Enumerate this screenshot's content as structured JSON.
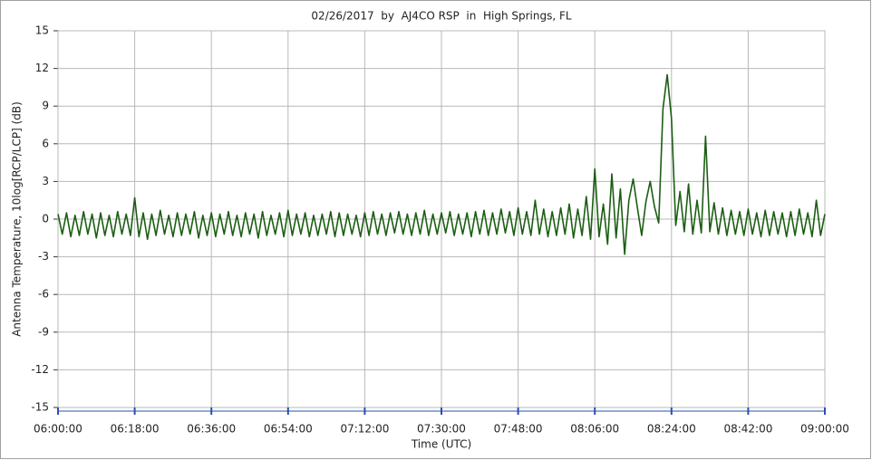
{
  "chart_data": {
    "type": "line",
    "title": "02/26/2017  by  AJ4CO RSP  in  High Springs, FL",
    "xlabel": "Time (UTC)",
    "ylabel": "Antenna Temperature, 10log[RCP/LCP] (dB)",
    "color": "#1b5e12",
    "grid": true,
    "xlim": [
      "06:00:00",
      "09:00:00"
    ],
    "xticks": [
      "06:00:00",
      "06:18:00",
      "06:36:00",
      "06:54:00",
      "07:12:00",
      "07:30:00",
      "07:48:00",
      "08:06:00",
      "08:24:00",
      "08:42:00",
      "09:00:00"
    ],
    "ylim": [
      -15,
      15
    ],
    "yticks": [
      -15,
      -12,
      -9,
      -6,
      -3,
      0,
      3,
      6,
      9,
      12,
      15
    ],
    "x": [
      "06:00:00",
      "06:01:00",
      "06:02:00",
      "06:03:00",
      "06:04:00",
      "06:05:00",
      "06:06:00",
      "06:07:00",
      "06:08:00",
      "06:09:00",
      "06:10:00",
      "06:11:00",
      "06:12:00",
      "06:13:00",
      "06:14:00",
      "06:15:00",
      "06:16:00",
      "06:17:00",
      "06:18:00",
      "06:19:00",
      "06:20:00",
      "06:21:00",
      "06:22:00",
      "06:23:00",
      "06:24:00",
      "06:25:00",
      "06:26:00",
      "06:27:00",
      "06:28:00",
      "06:29:00",
      "06:30:00",
      "06:31:00",
      "06:32:00",
      "06:33:00",
      "06:34:00",
      "06:35:00",
      "06:36:00",
      "06:37:00",
      "06:38:00",
      "06:39:00",
      "06:40:00",
      "06:41:00",
      "06:42:00",
      "06:43:00",
      "06:44:00",
      "06:45:00",
      "06:46:00",
      "06:47:00",
      "06:48:00",
      "06:49:00",
      "06:50:00",
      "06:51:00",
      "06:52:00",
      "06:53:00",
      "06:54:00",
      "06:55:00",
      "06:56:00",
      "06:57:00",
      "06:58:00",
      "06:59:00",
      "07:00:00",
      "07:01:00",
      "07:02:00",
      "07:03:00",
      "07:04:00",
      "07:05:00",
      "07:06:00",
      "07:07:00",
      "07:08:00",
      "07:09:00",
      "07:10:00",
      "07:11:00",
      "07:12:00",
      "07:13:00",
      "07:14:00",
      "07:15:00",
      "07:16:00",
      "07:17:00",
      "07:18:00",
      "07:19:00",
      "07:20:00",
      "07:21:00",
      "07:22:00",
      "07:23:00",
      "07:24:00",
      "07:25:00",
      "07:26:00",
      "07:27:00",
      "07:28:00",
      "07:29:00",
      "07:30:00",
      "07:31:00",
      "07:32:00",
      "07:33:00",
      "07:34:00",
      "07:35:00",
      "07:36:00",
      "07:37:00",
      "07:38:00",
      "07:39:00",
      "07:40:00",
      "07:41:00",
      "07:42:00",
      "07:43:00",
      "07:44:00",
      "07:45:00",
      "07:46:00",
      "07:47:00",
      "07:48:00",
      "07:49:00",
      "07:50:00",
      "07:51:00",
      "07:52:00",
      "07:53:00",
      "07:54:00",
      "07:55:00",
      "07:56:00",
      "07:57:00",
      "07:58:00",
      "07:59:00",
      "08:00:00",
      "08:01:00",
      "08:02:00",
      "08:03:00",
      "08:04:00",
      "08:05:00",
      "08:06:00",
      "08:07:00",
      "08:08:00",
      "08:09:00",
      "08:10:00",
      "08:11:00",
      "08:12:00",
      "08:13:00",
      "08:14:00",
      "08:15:00",
      "08:16:00",
      "08:17:00",
      "08:18:00",
      "08:19:00",
      "08:20:00",
      "08:21:00",
      "08:22:00",
      "08:23:00",
      "08:24:00",
      "08:25:00",
      "08:26:00",
      "08:27:00",
      "08:28:00",
      "08:29:00",
      "08:30:00",
      "08:31:00",
      "08:32:00",
      "08:33:00",
      "08:34:00",
      "08:35:00",
      "08:36:00",
      "08:37:00",
      "08:38:00",
      "08:39:00",
      "08:40:00",
      "08:41:00",
      "08:42:00",
      "08:43:00",
      "08:44:00",
      "08:45:00",
      "08:46:00",
      "08:47:00",
      "08:48:00",
      "08:49:00",
      "08:50:00",
      "08:51:00",
      "08:52:00",
      "08:53:00",
      "08:54:00",
      "08:55:00",
      "08:56:00",
      "08:57:00",
      "08:58:00",
      "08:59:00",
      "09:00:00"
    ],
    "values": [
      0.4,
      -1.2,
      0.5,
      -1.4,
      0.3,
      -1.3,
      0.6,
      -1.2,
      0.4,
      -1.5,
      0.5,
      -1.3,
      0.3,
      -1.4,
      0.6,
      -1.2,
      0.4,
      -1.3,
      1.7,
      -1.4,
      0.5,
      -1.6,
      0.4,
      -1.3,
      0.7,
      -1.2,
      0.3,
      -1.4,
      0.5,
      -1.3,
      0.4,
      -1.2,
      0.6,
      -1.5,
      0.3,
      -1.3,
      0.5,
      -1.4,
      0.4,
      -1.2,
      0.6,
      -1.3,
      0.3,
      -1.4,
      0.5,
      -1.2,
      0.4,
      -1.5,
      0.6,
      -1.3,
      0.3,
      -1.2,
      0.5,
      -1.4,
      0.7,
      -1.3,
      0.4,
      -1.2,
      0.5,
      -1.4,
      0.3,
      -1.3,
      0.4,
      -1.2,
      0.6,
      -1.4,
      0.5,
      -1.3,
      0.4,
      -1.2,
      0.3,
      -1.4,
      0.5,
      -1.3,
      0.6,
      -1.2,
      0.4,
      -1.3,
      0.5,
      -1.1,
      0.6,
      -1.2,
      0.4,
      -1.3,
      0.5,
      -1.2,
      0.7,
      -1.3,
      0.4,
      -1.2,
      0.5,
      -1.1,
      0.6,
      -1.3,
      0.4,
      -1.2,
      0.5,
      -1.4,
      0.6,
      -1.2,
      0.7,
      -1.3,
      0.5,
      -1.2,
      0.8,
      -1.1,
      0.6,
      -1.3,
      0.9,
      -1.2,
      0.6,
      -1.3,
      1.5,
      -1.2,
      0.8,
      -1.4,
      0.6,
      -1.3,
      0.9,
      -1.2,
      1.2,
      -1.5,
      0.8,
      -1.3,
      1.8,
      -1.6,
      4.0,
      -1.4,
      1.2,
      -2.0,
      3.6,
      -1.5,
      2.4,
      -2.8,
      1.5,
      3.2,
      0.9,
      -1.3,
      1.4,
      3.0,
      1.0,
      -0.3,
      8.8,
      11.5,
      8.0,
      -0.5,
      2.2,
      -1.0,
      2.8,
      -1.2,
      1.5,
      -1.1,
      6.6,
      -1.0,
      1.3,
      -1.2,
      0.9,
      -1.3,
      0.7,
      -1.2,
      0.6,
      -1.3,
      0.8,
      -1.2,
      0.5,
      -1.4,
      0.7,
      -1.3,
      0.6,
      -1.2,
      0.5,
      -1.4,
      0.6,
      -1.3,
      0.8,
      -1.2,
      0.5,
      -1.4,
      1.5,
      -1.3,
      0.4
    ]
  }
}
